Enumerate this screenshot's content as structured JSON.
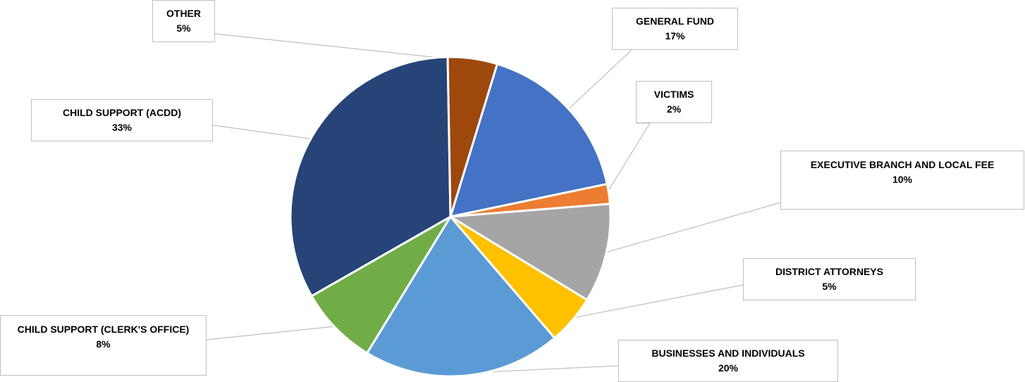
{
  "chart_data": {
    "type": "pie",
    "slices": [
      {
        "key": "general_fund",
        "label": "GENERAL FUND",
        "value": 17,
        "pct_text": "17%",
        "color": "#4472C4"
      },
      {
        "key": "victims",
        "label": "VICTIMS",
        "value": 2,
        "pct_text": "2%",
        "color": "#ED7D31"
      },
      {
        "key": "executive_branch",
        "label": "EXECUTIVE BRANCH AND LOCAL FEE",
        "value": 10,
        "pct_text": "10%",
        "color": "#A5A5A5"
      },
      {
        "key": "district_attorneys",
        "label": "DISTRICT ATTORNEYS",
        "value": 5,
        "pct_text": "5%",
        "color": "#FFC000"
      },
      {
        "key": "businesses",
        "label": "BUSINESSES AND INDIVIDUALS",
        "value": 20,
        "pct_text": "20%",
        "color": "#5B9BD5"
      },
      {
        "key": "child_support_clerk",
        "label": "CHILD SUPPORT (CLERK'S OFFICE)",
        "value": 8,
        "pct_text": "8%",
        "color": "#70AD47"
      },
      {
        "key": "child_support_acdd",
        "label": "CHILD SUPPORT (ACDD)",
        "value": 33,
        "pct_text": "33%",
        "color": "#264478"
      },
      {
        "key": "other",
        "label": "OTHER",
        "value": 5,
        "pct_text": "5%",
        "color": "#9E480E"
      }
    ]
  }
}
